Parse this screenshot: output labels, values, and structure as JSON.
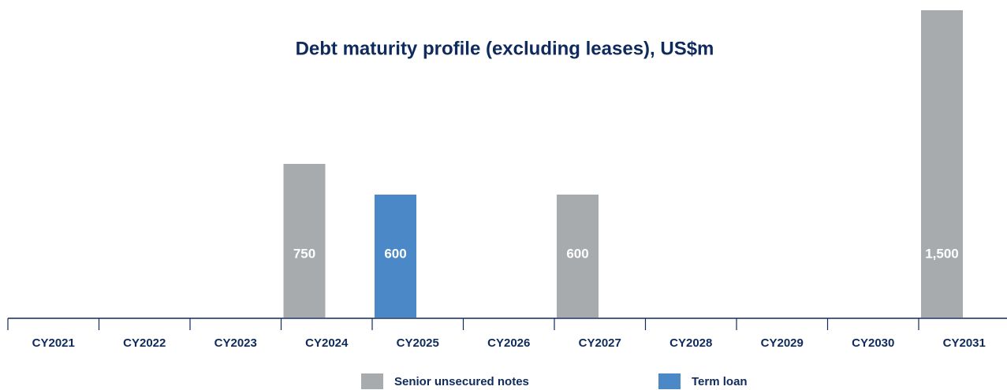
{
  "chart_data": {
    "type": "bar",
    "title": "Debt maturity profile (excluding leases), US$m",
    "categories": [
      "CY2021",
      "CY2022",
      "CY2023",
      "CY2024",
      "CY2025",
      "CY2026",
      "CY2027",
      "CY2028",
      "CY2029",
      "CY2030",
      "CY2031"
    ],
    "series": [
      {
        "name": "Senior unsecured notes",
        "color": "#a7abae",
        "values": [
          null,
          null,
          null,
          750,
          null,
          null,
          600,
          null,
          null,
          null,
          1500
        ],
        "value_labels": [
          null,
          null,
          null,
          "750",
          null,
          null,
          "600",
          null,
          null,
          null,
          "1,500"
        ]
      },
      {
        "name": "Term loan",
        "color": "#4a88c8",
        "values": [
          null,
          null,
          null,
          null,
          600,
          null,
          null,
          null,
          null,
          null,
          null
        ]
      }
    ],
    "ylim": [
      0,
      1500
    ],
    "legend": "bottom"
  }
}
